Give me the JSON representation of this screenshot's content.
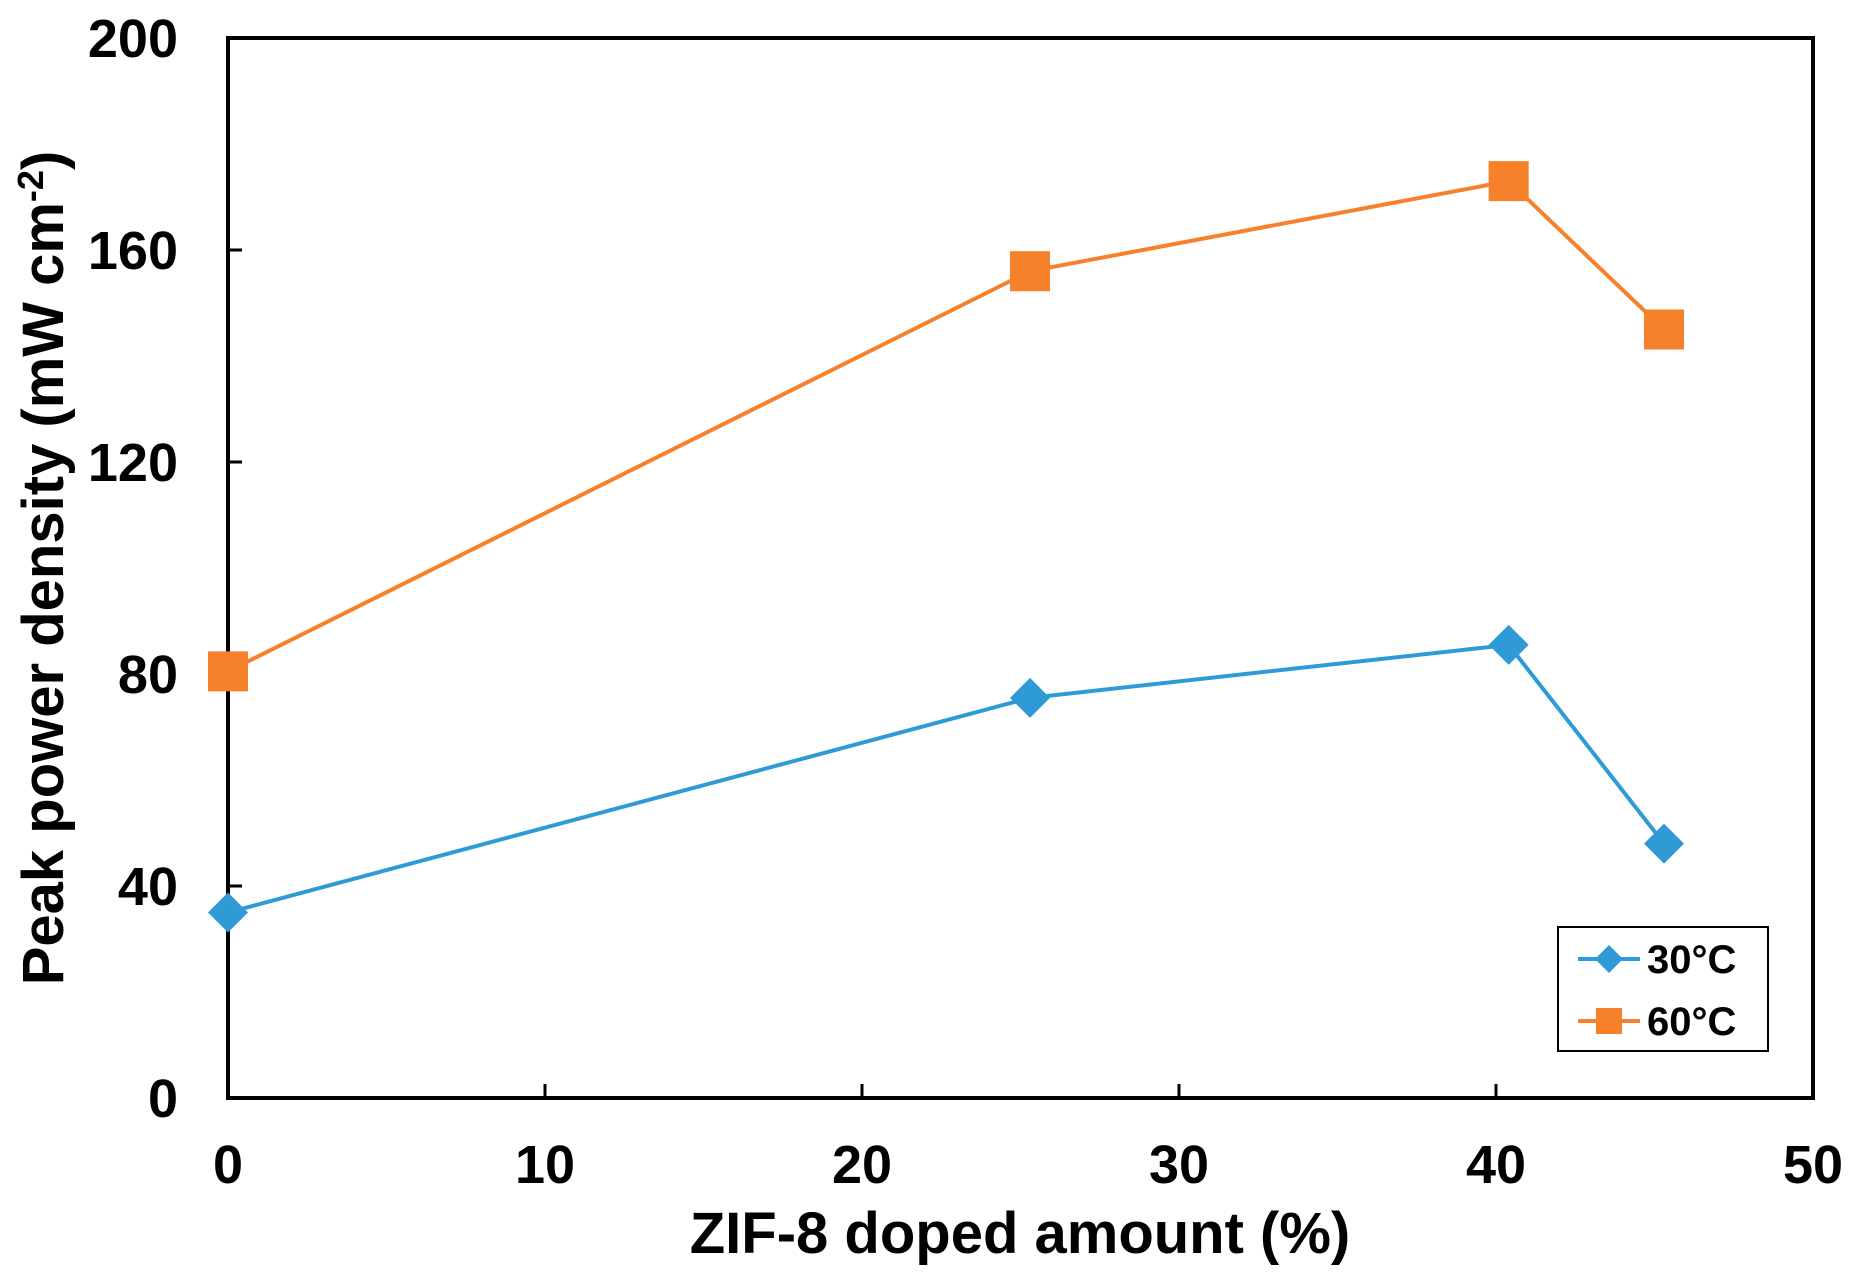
{
  "chart_data": {
    "type": "line",
    "title": "",
    "xlabel": "ZIF-8 doped amount (%)",
    "ylabel": {
      "main": "Peak power density (mW cm",
      "superscript": "-2",
      "close": ")"
    },
    "xlim": [
      0,
      50
    ],
    "ylim": [
      0,
      200
    ],
    "xticks": [
      0,
      10,
      20,
      30,
      40,
      50
    ],
    "yticks": [
      0,
      40,
      80,
      120,
      160,
      200
    ],
    "grid": false,
    "legend_position": "bottom-right",
    "series": [
      {
        "name": "30°C",
        "marker": "diamond",
        "color": "#2E9BD6",
        "x": [
          0,
          25.3,
          40.4,
          45.3
        ],
        "y": [
          35,
          75.5,
          85.5,
          48
        ]
      },
      {
        "name": "60°C",
        "marker": "square",
        "color": "#F7812A",
        "x": [
          0,
          25.3,
          40.4,
          45.3
        ],
        "y": [
          80.5,
          156,
          173,
          145
        ]
      }
    ]
  }
}
